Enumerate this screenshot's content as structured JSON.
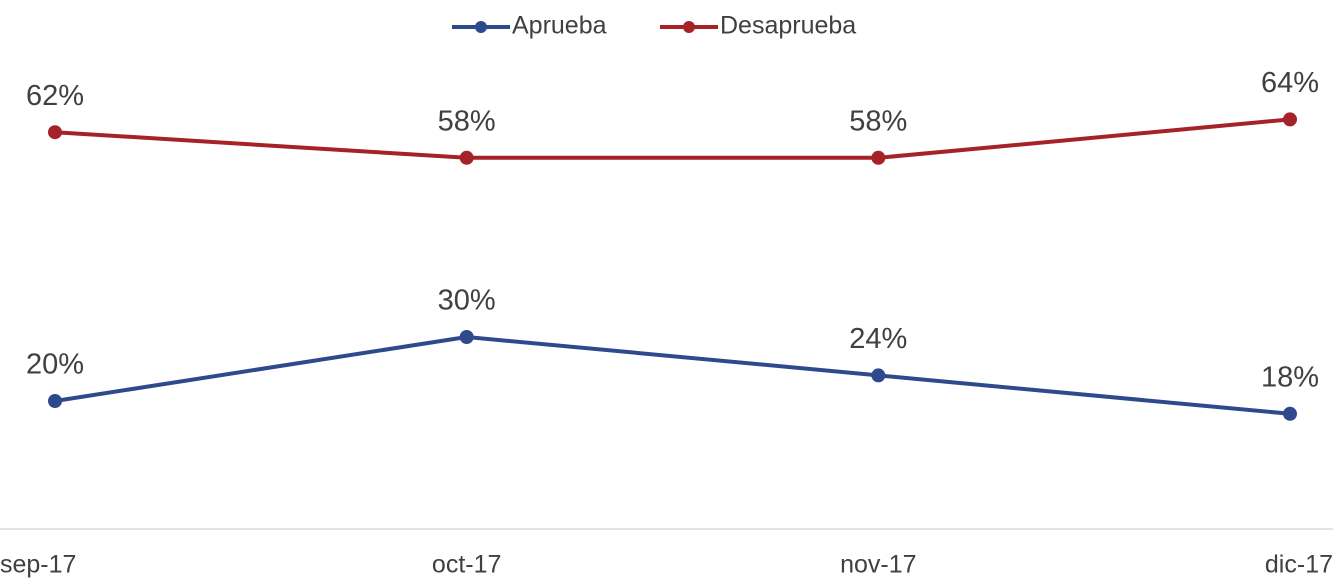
{
  "chart_data": {
    "type": "line",
    "categories": [
      "sep-17",
      "oct-17",
      "nov-17",
      "dic-17"
    ],
    "series": [
      {
        "name": "Aprueba",
        "color": "#2e4a8c",
        "values": [
          20,
          30,
          24,
          18
        ],
        "value_labels": [
          "20%",
          "30%",
          "24%",
          "18%"
        ]
      },
      {
        "name": "Desaprueba",
        "color": "#a52228",
        "values": [
          62,
          58,
          58,
          64
        ],
        "value_labels": [
          "62%",
          "58%",
          "58%",
          "64%"
        ]
      }
    ],
    "ylim": [
      0,
      80
    ]
  }
}
